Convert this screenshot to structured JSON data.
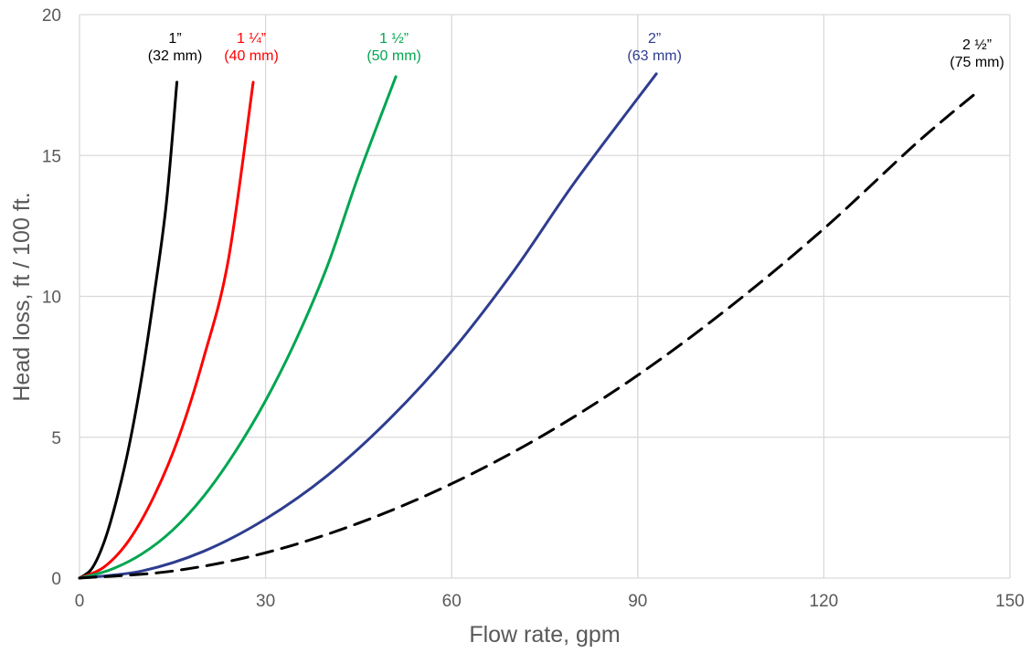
{
  "chart_data": {
    "type": "line",
    "xlabel": "Flow rate, gpm",
    "ylabel": "Head loss, ft / 100 ft.",
    "xlim": [
      0,
      150
    ],
    "ylim": [
      0,
      20
    ],
    "x_ticks": [
      0,
      30,
      60,
      90,
      120,
      150
    ],
    "y_ticks": [
      0,
      5,
      10,
      15,
      20
    ],
    "grid": true,
    "legend": "none",
    "series": [
      {
        "name_line1": "1”",
        "name_line2": "(32 mm)",
        "color": "#000000",
        "dash": "solid",
        "x": [
          0,
          2,
          4,
          6,
          8,
          10,
          12,
          14,
          15.7
        ],
        "y": [
          0,
          0.34,
          1.3,
          2.8,
          4.7,
          7.1,
          10.0,
          13.3,
          17.6
        ]
      },
      {
        "name_line1": "1 ¼”",
        "name_line2": "(40 mm)",
        "color": "#ff0000",
        "dash": "solid",
        "x": [
          0,
          4,
          8,
          12,
          16,
          20,
          24,
          28
        ],
        "y": [
          0,
          0.4,
          1.35,
          2.9,
          5.0,
          7.8,
          11.3,
          17.6
        ]
      },
      {
        "name_line1": "1 ½”",
        "name_line2": "(50 mm)",
        "color": "#00a651",
        "dash": "solid",
        "x": [
          0,
          5,
          10,
          15,
          20,
          25,
          30,
          35,
          40,
          45,
          51
        ],
        "y": [
          0,
          0.3,
          0.85,
          1.7,
          2.9,
          4.45,
          6.3,
          8.5,
          11.1,
          14.3,
          17.8
        ]
      },
      {
        "name_line1": "2”",
        "name_line2": "(63 mm)",
        "color": "#2e3d8f",
        "dash": "solid",
        "x": [
          0,
          10,
          20,
          30,
          40,
          50,
          60,
          70,
          80,
          93
        ],
        "y": [
          0,
          0.25,
          0.95,
          2.1,
          3.65,
          5.65,
          8.05,
          10.9,
          14.1,
          17.9
        ]
      },
      {
        "name_line1": "2 ½”",
        "name_line2": "(75 mm)",
        "color": "#000000",
        "dash": "dashed",
        "x": [
          0,
          15,
          30,
          45,
          60,
          75,
          90,
          105,
          120,
          135,
          145
        ],
        "y": [
          0,
          0.25,
          0.9,
          1.95,
          3.35,
          5.1,
          7.2,
          9.65,
          12.4,
          15.45,
          17.3
        ]
      }
    ]
  }
}
